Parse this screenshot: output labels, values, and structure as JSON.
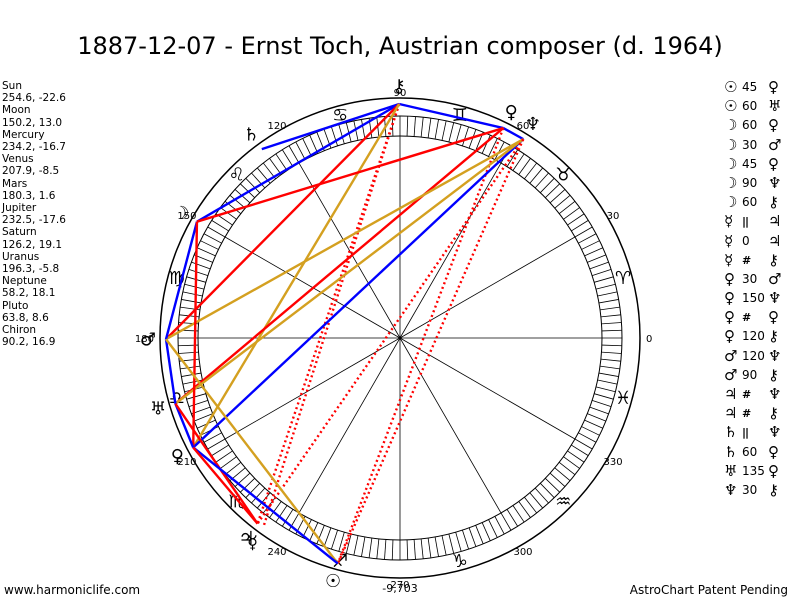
{
  "title": "1887-12-07 - Ernst Toch, Austrian composer (d. 1964)",
  "footer": {
    "website": "www.harmoniclife.com",
    "credit": "AstroChart Patent Pending",
    "bottom_value": "-9,703"
  },
  "planets": [
    {
      "name": "Sun",
      "coords": "254.6, -22.6",
      "glyph": "☉",
      "longitude": 254.6
    },
    {
      "name": "Moon",
      "coords": "150.2, 13.0",
      "glyph": "☽",
      "longitude": 150.2
    },
    {
      "name": "Mercury",
      "coords": "234.2, -16.7",
      "glyph": "☿",
      "longitude": 234.2
    },
    {
      "name": "Venus",
      "coords": "207.9, -8.5",
      "glyph": "♀",
      "longitude": 207.9
    },
    {
      "name": "Mars",
      "coords": "180.3, 1.6",
      "glyph": "♂",
      "longitude": 180.3
    },
    {
      "name": "Jupiter",
      "coords": "232.5, -17.6",
      "glyph": "♃",
      "longitude": 232.5
    },
    {
      "name": "Saturn",
      "coords": "126.2, 19.1",
      "glyph": "♄",
      "longitude": 126.2
    },
    {
      "name": "Uranus",
      "coords": "196.3, -5.8",
      "glyph": "♅",
      "longitude": 196.3
    },
    {
      "name": "Neptune",
      "coords": "58.2, 18.1",
      "glyph": "♆",
      "longitude": 58.2
    },
    {
      "name": "Pluto",
      "coords": "63.8, 8.6",
      "glyph": "♀",
      "longitude": 63.8
    },
    {
      "name": "Chiron",
      "coords": "90.2, 16.9",
      "glyph": "⚷",
      "longitude": 90.2
    }
  ],
  "aspects": [
    {
      "p1": "☉",
      "angle": "45",
      "p2": "♀"
    },
    {
      "p1": "☉",
      "angle": "60",
      "p2": "♅"
    },
    {
      "p1": "☽",
      "angle": "60",
      "p2": "♀"
    },
    {
      "p1": "☽",
      "angle": "30",
      "p2": "♂"
    },
    {
      "p1": "☽",
      "angle": "45",
      "p2": "♀"
    },
    {
      "p1": "☽",
      "angle": "90",
      "p2": "♆"
    },
    {
      "p1": "☽",
      "angle": "60",
      "p2": "⚷"
    },
    {
      "p1": "☿",
      "angle": "||",
      "p2": "♃"
    },
    {
      "p1": "☿",
      "angle": "0",
      "p2": "♃"
    },
    {
      "p1": "☿",
      "angle": "#",
      "p2": "⚷"
    },
    {
      "p1": "♀",
      "angle": "30",
      "p2": "♂"
    },
    {
      "p1": "♀",
      "angle": "150",
      "p2": "♆"
    },
    {
      "p1": "♀",
      "angle": "#",
      "p2": "♀"
    },
    {
      "p1": "♀",
      "angle": "120",
      "p2": "⚷"
    },
    {
      "p1": "♂",
      "angle": "120",
      "p2": "♆"
    },
    {
      "p1": "♂",
      "angle": "90",
      "p2": "⚷"
    },
    {
      "p1": "♃",
      "angle": "#",
      "p2": "♆"
    },
    {
      "p1": "♃",
      "angle": "#",
      "p2": "⚷"
    },
    {
      "p1": "♄",
      "angle": "||",
      "p2": "♆"
    },
    {
      "p1": "♄",
      "angle": "60",
      "p2": "♀"
    },
    {
      "p1": "♅",
      "angle": "135",
      "p2": "♀"
    },
    {
      "p1": "♆",
      "angle": "30",
      "p2": "⚷"
    }
  ],
  "wheel": {
    "degree_labels": [
      "0",
      "30",
      "60",
      "90",
      "120",
      "150",
      "180",
      "210",
      "240",
      "270",
      "300",
      "330"
    ],
    "zodiac_signs": [
      "♈",
      "♉",
      "♊",
      "♋",
      "♌",
      "♍",
      "♎",
      "♏",
      "♐",
      "♑",
      "♒",
      "♓"
    ],
    "colors": {
      "blue": "#0000ff",
      "red": "#ff0000",
      "gold": "#d4a020",
      "dotted_red": "#ff0000"
    }
  },
  "aspect_lines": [
    {
      "from": "Chiron",
      "to": "Pluto",
      "color": "blue",
      "style": "solid"
    },
    {
      "from": "Chiron",
      "to": "Saturn",
      "color": "blue",
      "style": "solid"
    },
    {
      "from": "Chiron",
      "to": "Moon",
      "color": "blue",
      "style": "solid"
    },
    {
      "from": "Chiron",
      "to": "Mars",
      "color": "red",
      "style": "solid"
    },
    {
      "from": "Chiron",
      "to": "Mercury",
      "color": "red",
      "style": "dotted"
    },
    {
      "from": "Chiron",
      "to": "Jupiter",
      "color": "red",
      "style": "dotted"
    },
    {
      "from": "Chiron",
      "to": "Venus",
      "color": "gold",
      "style": "solid"
    },
    {
      "from": "Pluto",
      "to": "Neptune",
      "color": "blue",
      "style": "solid"
    },
    {
      "from": "Pluto",
      "to": "Moon",
      "color": "red",
      "style": "solid"
    },
    {
      "from": "Pluto",
      "to": "Uranus",
      "color": "red",
      "style": "solid"
    },
    {
      "from": "Pluto",
      "to": "Sun",
      "color": "red",
      "style": "dotted"
    },
    {
      "from": "Neptune",
      "to": "Venus",
      "color": "blue",
      "style": "solid"
    },
    {
      "from": "Neptune",
      "to": "Mars",
      "color": "gold",
      "style": "solid"
    },
    {
      "from": "Neptune",
      "to": "Uranus",
      "color": "gold",
      "style": "solid"
    },
    {
      "from": "Neptune",
      "to": "Sun",
      "color": "red",
      "style": "dotted"
    },
    {
      "from": "Neptune",
      "to": "Jupiter",
      "color": "red",
      "style": "dotted"
    },
    {
      "from": "Moon",
      "to": "Mars",
      "color": "blue",
      "style": "solid"
    },
    {
      "from": "Moon",
      "to": "Venus",
      "color": "red",
      "style": "solid"
    },
    {
      "from": "Mars",
      "to": "Uranus",
      "color": "blue",
      "style": "solid"
    },
    {
      "from": "Mars",
      "to": "Sun",
      "color": "gold",
      "style": "solid"
    },
    {
      "from": "Uranus",
      "to": "Venus",
      "color": "blue",
      "style": "solid"
    },
    {
      "from": "Uranus",
      "to": "Jupiter",
      "color": "red",
      "style": "solid"
    },
    {
      "from": "Venus",
      "to": "Sun",
      "color": "blue",
      "style": "solid"
    },
    {
      "from": "Venus",
      "to": "Jupiter",
      "color": "red",
      "style": "solid"
    }
  ]
}
